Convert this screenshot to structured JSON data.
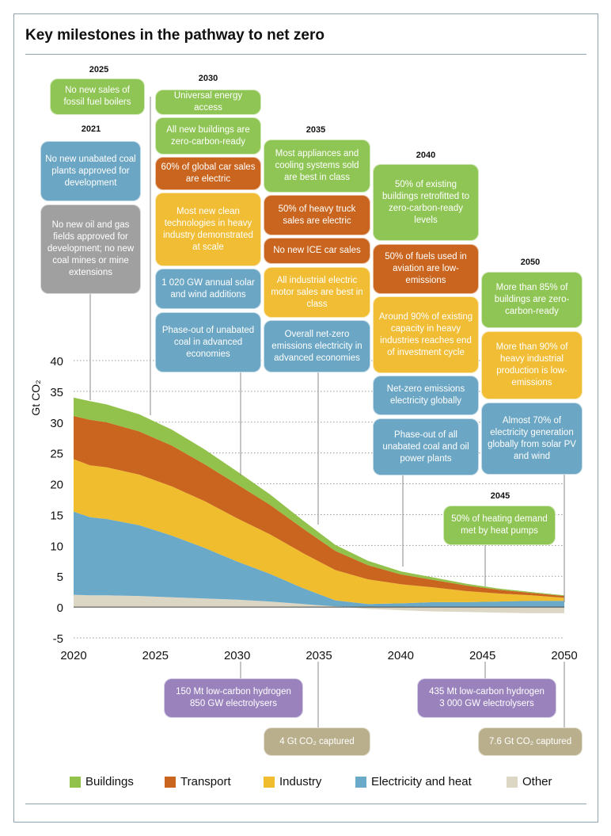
{
  "title": "Key milestones in the pathway to net zero",
  "colors": {
    "buildings": "#92c24b",
    "transport": "#c9651e",
    "industry": "#efbd2d",
    "electricity": "#6aa9c8",
    "other": "#dcd6c4",
    "green_box": "#8fc554",
    "orange_box": "#c9651e",
    "yellow_box": "#f0bd35",
    "blue_box": "#6ba6c4",
    "grey_box": "#a0a0a0",
    "purple_box": "#9a82bd",
    "tan_box": "#b9af8c"
  },
  "chart_data": {
    "type": "area",
    "stacked": true,
    "x": [
      2020,
      2021,
      2022,
      2024,
      2026,
      2028,
      2030,
      2032,
      2034,
      2036,
      2038,
      2040,
      2042,
      2044,
      2046,
      2048,
      2050
    ],
    "series": [
      {
        "name": "Other",
        "values": [
          2.0,
          1.9,
          1.9,
          1.8,
          1.6,
          1.4,
          1.2,
          0.9,
          0.5,
          0.1,
          -0.3,
          -0.5,
          -0.7,
          -0.8,
          -0.9,
          -1.0,
          -1.0
        ]
      },
      {
        "name": "Electricity and heat",
        "values": [
          13.5,
          12.7,
          12.4,
          11.5,
          10.0,
          8.2,
          6.2,
          4.5,
          2.6,
          1.0,
          0.5,
          0.6,
          0.8,
          0.8,
          0.9,
          1.0,
          1.0
        ]
      },
      {
        "name": "Industry",
        "values": [
          8.5,
          8.4,
          8.4,
          8.2,
          8.0,
          7.6,
          7.0,
          6.4,
          5.7,
          4.9,
          4.0,
          3.1,
          2.4,
          1.8,
          1.3,
          0.9,
          0.5
        ]
      },
      {
        "name": "Transport",
        "values": [
          7.0,
          7.4,
          7.3,
          7.0,
          6.6,
          6.0,
          5.5,
          4.8,
          4.0,
          3.1,
          2.3,
          1.6,
          1.2,
          0.9,
          0.6,
          0.4,
          0.3
        ]
      },
      {
        "name": "Buildings",
        "values": [
          3.0,
          3.0,
          2.9,
          2.8,
          2.6,
          2.4,
          2.1,
          1.7,
          1.3,
          1.0,
          0.7,
          0.5,
          0.4,
          0.3,
          0.2,
          0.15,
          0.1
        ]
      }
    ],
    "ylabel": "Gt CO₂",
    "yticks": [
      40,
      35,
      30,
      25,
      20,
      15,
      10,
      5,
      0,
      -5
    ],
    "xticks": [
      2020,
      2025,
      2030,
      2035,
      2040,
      2045,
      2050
    ],
    "xlim": [
      2020,
      2050
    ],
    "ylim": [
      -5,
      40
    ],
    "grid": "dotted horizontal"
  },
  "years": {
    "y2021": "2021",
    "y2025": "2025",
    "y2030": "2030",
    "y2035": "2035",
    "y2040": "2040",
    "y2045": "2045",
    "y2050": "2050"
  },
  "milestones": {
    "m2021_coal": "No new unabated coal plants approved for development",
    "m2021_oilgas": "No new oil and gas fields approved for development; no new coal mines or mine extensions",
    "m2025_boilers": "No new sales of fossil fuel boilers",
    "m2030_access": "Universal energy access",
    "m2030_buildings": "All new buildings are zero-carbon-ready",
    "m2030_cars": "60% of global car sales are electric",
    "m2030_industry": "Most new clean technologies in heavy industry demonstrated at scale",
    "m2030_solar": "1 020 GW annual solar and wind additions",
    "m2030_coal": "Phase-out of unabated coal in advanced economies",
    "m2035_appliances": "Most appliances and cooling systems sold are best in class",
    "m2035_trucks": "50% of heavy truck sales are electric",
    "m2035_ice": "No new ICE car sales",
    "m2035_motors": "All industrial electric motor sales are best in class",
    "m2035_electricity": "Overall net-zero emissions electricity in advanced economies",
    "m2040_retrofit": "50% of existing buildings retrofitted to zero-carbon-ready levels",
    "m2040_aviation": "50% of fuels used in aviation are low-emissions",
    "m2040_industry": "Around 90% of existing capacity in heavy industries reaches end of investment cycle",
    "m2040_electricity": "Net-zero emissions electricity globally",
    "m2040_phaseout": "Phase-out of all unabated coal and oil power plants",
    "m2045_heat": "50% of heating demand met by heat pumps",
    "m2050_buildings": "More than 85% of buildings are zero-carbon-ready",
    "m2050_industry": "More than 90% of heavy industrial production is low-emissions",
    "m2050_solar": "Almost 70% of electricity generation globally from solar PV and wind",
    "hydrogen_2030_line1": "150 Mt low-carbon hydrogen",
    "hydrogen_2030_line2": "850 GW electrolysers",
    "hydrogen_2045_line1": "435 Mt low-carbon hydrogen",
    "hydrogen_2045_line2": "3 000 GW electrolysers",
    "captured_2035": "4 Gt CO₂ captured",
    "captured_2050": "7.6 Gt CO₂ captured"
  },
  "legend": {
    "buildings": "Buildings",
    "transport": "Transport",
    "industry": "Industry",
    "electricity": "Electricity and heat",
    "other": "Other"
  }
}
